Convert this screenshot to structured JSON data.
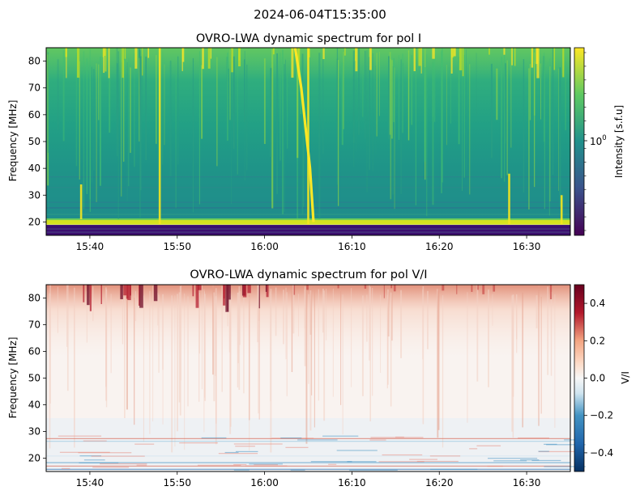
{
  "figure": {
    "suptitle": "2024-06-04T15:35:00"
  },
  "chart_data": [
    {
      "type": "heatmap",
      "title": "OVRO-LWA dynamic spectrum for pol I",
      "xlabel": "",
      "ylabel": "Frequency [MHz]",
      "xlim": [
        "15:35",
        "16:35"
      ],
      "ylim": [
        15,
        85
      ],
      "xticks": [
        "15:40",
        "15:50",
        "16:00",
        "16:10",
        "16:20",
        "16:30"
      ],
      "yticks": [
        20,
        30,
        40,
        50,
        60,
        70,
        80
      ],
      "colormap": "viridis",
      "colorbar": {
        "label": "Intensity [s.f.u]",
        "scale": "log",
        "tick_labels": [
          "10^0"
        ],
        "tick_values": [
          1
        ]
      },
      "features": {
        "low_band_MHz": [
          15,
          18.5
        ],
        "bright_band_MHz": [
          19,
          21
        ],
        "bright_bursts": [
          "15:39",
          "15:48",
          "16:05",
          "16:28",
          "16:34"
        ]
      },
      "colors": [
        "#440154",
        "#3b528b",
        "#21918c",
        "#5ec962",
        "#fde725"
      ]
    },
    {
      "type": "heatmap",
      "title": "OVRO-LWA dynamic spectrum for pol V/I",
      "xlabel": "",
      "ylabel": "Frequency [MHz]",
      "xlim": [
        "15:35",
        "16:35"
      ],
      "ylim": [
        15,
        85
      ],
      "xticks": [
        "15:40",
        "15:50",
        "16:00",
        "16:10",
        "16:20",
        "16:30"
      ],
      "yticks": [
        20,
        30,
        40,
        50,
        60,
        70,
        80
      ],
      "colormap": "RdBu_r",
      "colorbar": {
        "label": "V/I",
        "range": [
          -0.5,
          0.5
        ],
        "ticks": [
          "0.4",
          "0.2",
          "0.0",
          "−0.2",
          "−0.4"
        ],
        "tick_values": [
          0.4,
          0.2,
          0.0,
          -0.2,
          -0.4
        ]
      },
      "colors": [
        "#053061",
        "#4393c3",
        "#f7f7f7",
        "#f4a582",
        "#67001f"
      ]
    }
  ]
}
